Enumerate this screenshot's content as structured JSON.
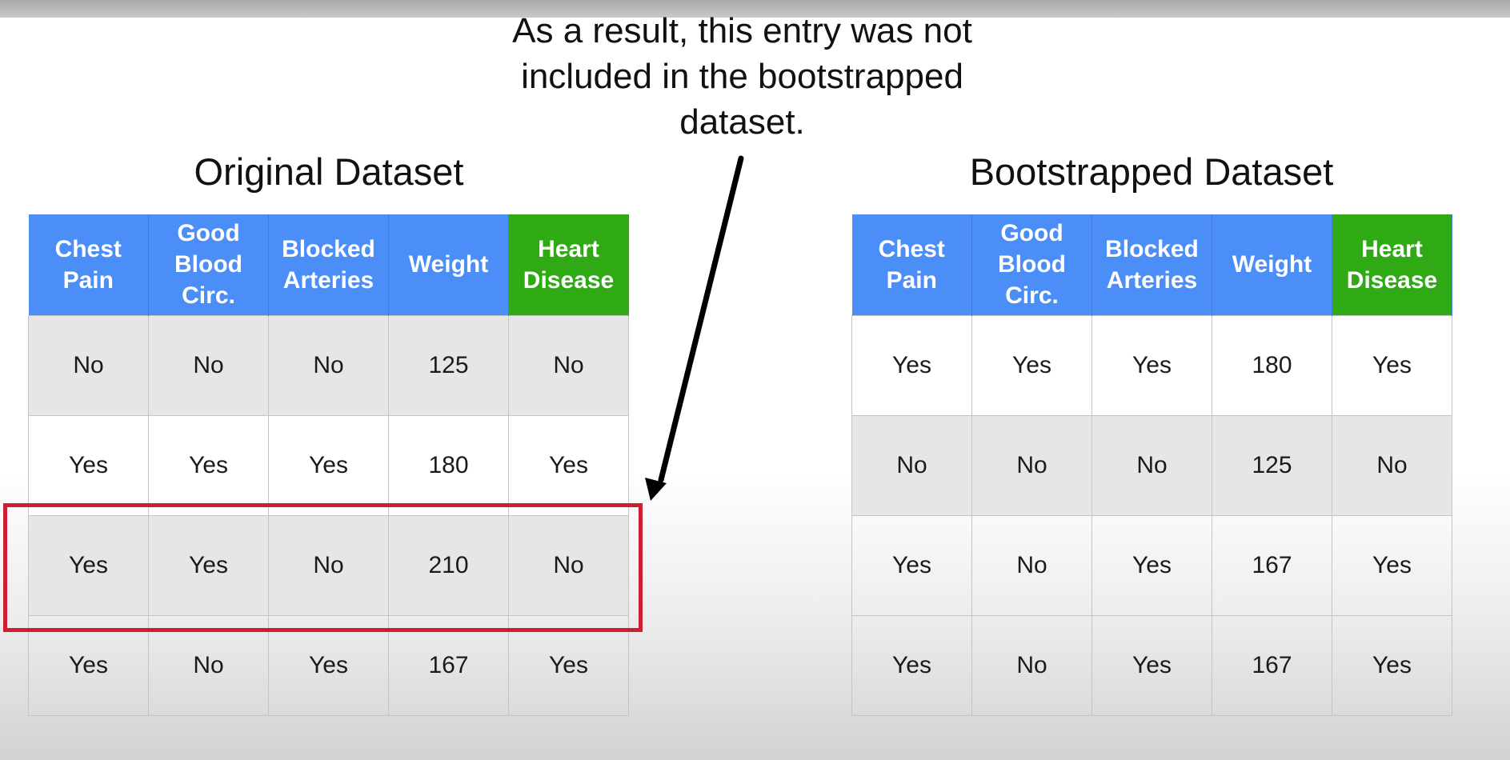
{
  "annotation": {
    "lines": [
      "As a result, this entry was not",
      "included in the bootstrapped",
      "dataset."
    ]
  },
  "original": {
    "title": "Original Dataset",
    "headers": [
      [
        "Chest",
        "Pain"
      ],
      [
        "Good",
        "Blood",
        "Circ."
      ],
      [
        "Blocked",
        "Arteries"
      ],
      [
        "Weight"
      ],
      [
        "Heart",
        "Disease"
      ]
    ],
    "rows": [
      [
        "No",
        "No",
        "No",
        "125",
        "No"
      ],
      [
        "Yes",
        "Yes",
        "Yes",
        "180",
        "Yes"
      ],
      [
        "Yes",
        "Yes",
        "No",
        "210",
        "No"
      ],
      [
        "Yes",
        "No",
        "Yes",
        "167",
        "Yes"
      ]
    ]
  },
  "bootstrapped": {
    "title": "Bootstrapped Dataset",
    "headers": [
      [
        "Chest",
        "Pain"
      ],
      [
        "Good",
        "Blood",
        "Circ."
      ],
      [
        "Blocked",
        "Arteries"
      ],
      [
        "Weight"
      ],
      [
        "Heart",
        "Disease"
      ]
    ],
    "rows": [
      [
        "Yes",
        "Yes",
        "Yes",
        "180",
        "Yes"
      ],
      [
        "No",
        "No",
        "No",
        "125",
        "No"
      ],
      [
        "Yes",
        "No",
        "Yes",
        "167",
        "Yes"
      ],
      [
        "Yes",
        "No",
        "Yes",
        "167",
        "Yes"
      ]
    ]
  },
  "colors": {
    "header_feature": "#4b8ef8",
    "header_target": "#2faa14",
    "highlight_border": "#cf1e32",
    "arrow": "#000000"
  },
  "icons": {
    "arrow": "arrow-pointing-to-excluded-row-icon"
  }
}
